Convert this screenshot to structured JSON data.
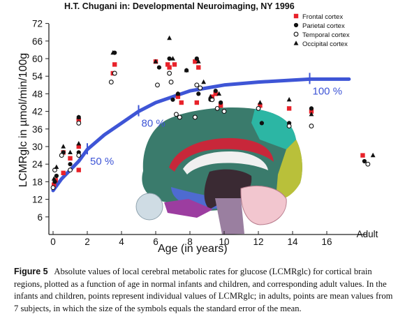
{
  "source": "H.T. Chugani in: Developmental Neuroimaging, NY 1996",
  "caption": {
    "label": "Figure 5",
    "text": "Absolute values of local cerebral metabolic rates for glucose (LCMRglc) for cortical brain regions, plotted as a function of age in normal infants and children, and corresponding adult values. In the infants and children, points represent individual values of LCMRglc; in adults, points are mean values from 7 subjects, in which the size of the symbols equals the standard error of the mean."
  },
  "chart_data": {
    "type": "scatter",
    "xlabel": "Age (in years)",
    "ylabel": "LCMRglc in µmol/min/100g",
    "x_ticks": [
      0,
      2,
      4,
      6,
      8,
      10,
      12,
      14,
      16
    ],
    "x_extra_tick": "Adult",
    "y_ticks": [
      6,
      12,
      18,
      24,
      30,
      36,
      42,
      48,
      54,
      60,
      66,
      72
    ],
    "xlim": [
      -0.3,
      19.5
    ],
    "ylim": [
      0,
      72
    ],
    "legend_position": "top-right",
    "series": [
      {
        "name": "Frontal cortex",
        "marker": "square",
        "color": "#e8222a",
        "points": [
          [
            0.05,
            17
          ],
          [
            0.15,
            18.5
          ],
          [
            0.6,
            21
          ],
          [
            0.6,
            28
          ],
          [
            1.0,
            26
          ],
          [
            1.5,
            22
          ],
          [
            1.5,
            30
          ],
          [
            1.5,
            39
          ],
          [
            3.5,
            55
          ],
          [
            3.6,
            58
          ],
          [
            6.0,
            59
          ],
          [
            6.7,
            58
          ],
          [
            6.8,
            57
          ],
          [
            7.1,
            58
          ],
          [
            7.3,
            47
          ],
          [
            7.5,
            45
          ],
          [
            8.3,
            59
          ],
          [
            8.4,
            45
          ],
          [
            8.5,
            57
          ],
          [
            9.3,
            47
          ],
          [
            9.5,
            48
          ],
          [
            9.8,
            44
          ],
          [
            12.1,
            44
          ],
          [
            13.8,
            43
          ],
          [
            15.1,
            42
          ],
          [
            18.1,
            27
          ]
        ]
      },
      {
        "name": "Parietal cortex",
        "marker": "filled-circle",
        "color": "#111111",
        "points": [
          [
            0.1,
            18
          ],
          [
            0.2,
            20
          ],
          [
            0.6,
            28
          ],
          [
            1.0,
            24
          ],
          [
            1.5,
            28
          ],
          [
            1.5,
            40
          ],
          [
            3.6,
            62
          ],
          [
            6.2,
            57
          ],
          [
            6.8,
            60
          ],
          [
            7.0,
            46
          ],
          [
            7.3,
            48
          ],
          [
            7.8,
            56
          ],
          [
            8.4,
            60
          ],
          [
            8.5,
            48
          ],
          [
            9.2,
            46
          ],
          [
            9.5,
            49
          ],
          [
            9.8,
            45
          ],
          [
            12.2,
            38
          ],
          [
            13.8,
            38
          ],
          [
            15.1,
            43
          ],
          [
            18.2,
            25
          ]
        ]
      },
      {
        "name": "Temporal cortex",
        "marker": "open-circle",
        "color": "#111111",
        "points": [
          [
            0.0,
            16
          ],
          [
            0.1,
            22
          ],
          [
            0.5,
            27
          ],
          [
            1.0,
            22
          ],
          [
            1.5,
            27
          ],
          [
            1.5,
            38
          ],
          [
            3.4,
            52
          ],
          [
            3.6,
            55
          ],
          [
            6.1,
            51
          ],
          [
            6.8,
            55
          ],
          [
            6.9,
            52
          ],
          [
            7.2,
            41
          ],
          [
            7.4,
            40
          ],
          [
            8.3,
            40
          ],
          [
            8.4,
            51
          ],
          [
            8.6,
            50
          ],
          [
            9.3,
            46
          ],
          [
            9.6,
            43
          ],
          [
            10.0,
            42
          ],
          [
            12.0,
            43
          ],
          [
            13.8,
            37
          ],
          [
            15.1,
            37
          ],
          [
            18.4,
            24
          ]
        ]
      },
      {
        "name": "Occipital cortex",
        "marker": "triangle",
        "color": "#111111",
        "points": [
          [
            0.05,
            19
          ],
          [
            0.2,
            23
          ],
          [
            0.6,
            30
          ],
          [
            1.0,
            28
          ],
          [
            1.5,
            31
          ],
          [
            1.5,
            40
          ],
          [
            3.5,
            62
          ],
          [
            6.0,
            59
          ],
          [
            6.8,
            67
          ],
          [
            7.0,
            60
          ],
          [
            7.3,
            48
          ],
          [
            7.8,
            56
          ],
          [
            8.5,
            59
          ],
          [
            8.8,
            52
          ],
          [
            9.2,
            47
          ],
          [
            9.7,
            48
          ],
          [
            12.1,
            45
          ],
          [
            13.8,
            46
          ],
          [
            15.1,
            41
          ],
          [
            18.7,
            27
          ]
        ]
      }
    ],
    "trend": {
      "color": "#3e55d6",
      "points": [
        [
          0,
          15
        ],
        [
          0.5,
          19
        ],
        [
          1.0,
          22
        ],
        [
          1.5,
          25
        ],
        [
          2.0,
          29
        ],
        [
          3.0,
          34
        ],
        [
          4.0,
          38
        ],
        [
          5.0,
          42
        ],
        [
          6.0,
          45
        ],
        [
          7.0,
          47
        ],
        [
          8.0,
          49
        ],
        [
          9.0,
          50
        ],
        [
          10.0,
          51
        ],
        [
          12.0,
          52
        ],
        [
          15.0,
          53
        ],
        [
          17.3,
          53
        ]
      ],
      "annotations": [
        {
          "text": "50 %",
          "x": 2.0,
          "y": 29
        },
        {
          "text": "80 %",
          "x": 5.0,
          "y": 42
        },
        {
          "text": "100 %",
          "x": 15.0,
          "y": 53
        }
      ]
    }
  },
  "brain_illustration": {
    "name": "brain-sagittal-section",
    "colors": {
      "frontal": "#3a7b6c",
      "parietal": "#2cb6a4",
      "occipital": "#b9c03a",
      "temporal": "#4e6bd0",
      "cingulate": "#c8273a",
      "corpus_callosum": "#f0f0f0",
      "cerebellum": "#f2c6cf",
      "brainstem": "#9a7fa0",
      "eye": "#cfdce4"
    }
  }
}
